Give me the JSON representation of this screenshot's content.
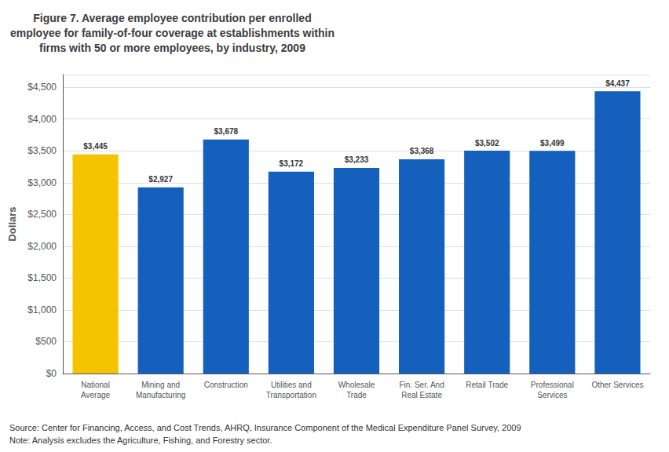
{
  "chart_data": {
    "type": "bar",
    "title": "Figure 7. Average employee contribution per enrolled\nemployee for family-of-four coverage at establishments within\nfirms with 50 or more employees, by industry, 2009",
    "y_label": "Dollars",
    "categories": [
      "National\nAverage",
      "Mining and\nManufacturing",
      "Construction",
      "Utilities and\nTransportation",
      "Wholesale\nTrade",
      "Fin. Ser. And\nReal Estate",
      "Retail Trade",
      "Professional\nServices",
      "Other Services"
    ],
    "values": [
      3445,
      2927,
      3678,
      3172,
      3233,
      3368,
      3502,
      3499,
      4437
    ],
    "value_labels": [
      "$3,445",
      "$2,927",
      "$3,678",
      "$3,172",
      "$3,233",
      "$3,368",
      "$3,502",
      "$3,499",
      "$4,437"
    ],
    "colors": [
      "#F5C400",
      "#1560BD",
      "#1560BD",
      "#1560BD",
      "#1560BD",
      "#1560BD",
      "#1560BD",
      "#1560BD",
      "#1560BD"
    ],
    "data_labels": true,
    "ylim": [
      0,
      4700
    ],
    "yticks": [
      {
        "value": 0,
        "label": "$0"
      },
      {
        "value": 500,
        "label": "$500"
      },
      {
        "value": 1000,
        "label": "$1,000"
      },
      {
        "value": 1500,
        "label": "$1,500"
      },
      {
        "value": 2000,
        "label": "$2,000"
      },
      {
        "value": 2500,
        "label": "$2,500"
      },
      {
        "value": 3000,
        "label": "$3,000"
      },
      {
        "value": 3500,
        "label": "$3,500"
      },
      {
        "value": 4000,
        "label": "$4,000"
      },
      {
        "value": 4500,
        "label": "$4,500"
      }
    ],
    "grid": true,
    "annotations": [
      "Source: Center for Financing, Access, and Cost Trends, AHRQ, Insurance Component of the Medical Expenditure Panel Survey, 2009",
      "Note: Analysis excludes the Agriculture, Fishing, and Forestry sector."
    ]
  }
}
